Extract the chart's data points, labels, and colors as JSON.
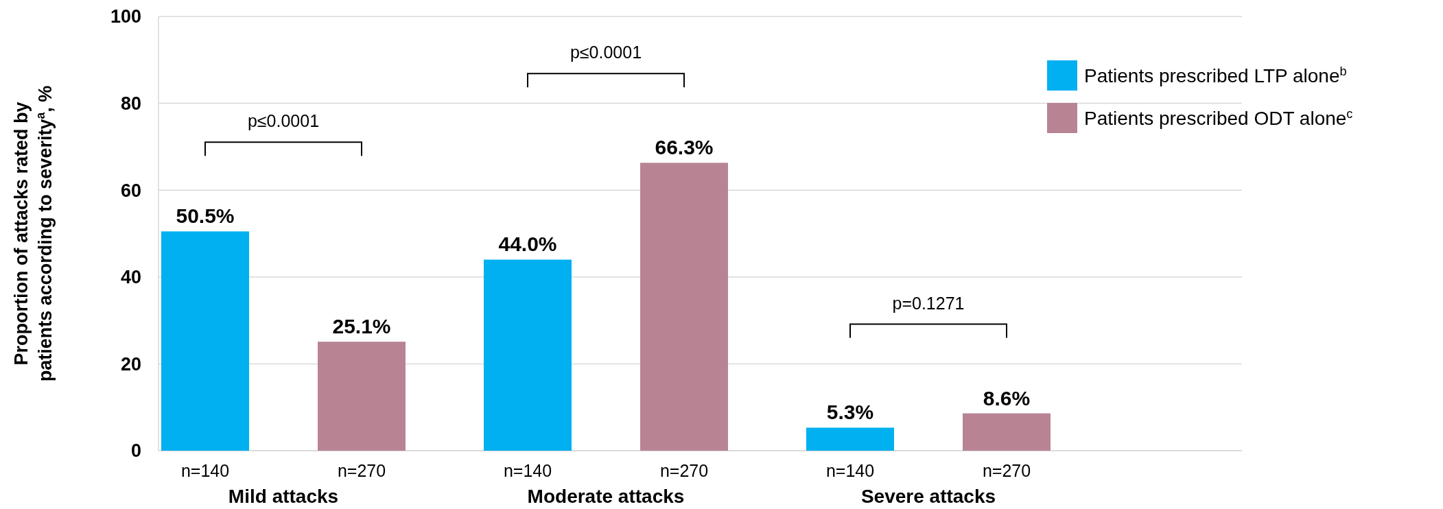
{
  "chart_data": {
    "type": "bar",
    "ylabel": "Proportion of attacks rated by patients according to severity$^{a}$, %",
    "categories": [
      "Mild attacks",
      "Moderate attacks",
      "Severe attacks"
    ],
    "series": [
      {
        "name": "Patients prescribed LTP alone$^{b}$",
        "color": "#00b0f0",
        "values": [
          50.5,
          44.0,
          5.3
        ]
      },
      {
        "name": "Patients prescribed ODT alone$^{c}$",
        "color": "#b88494",
        "values": [
          25.1,
          66.3,
          8.6
        ]
      }
    ],
    "value_labels": [
      [
        "50.5%",
        "44.0%",
        "5.3%"
      ],
      [
        "25.1%",
        "66.3%",
        "8.6%"
      ]
    ],
    "ylim": [
      0,
      100
    ],
    "yticks": [
      0,
      20,
      40,
      60,
      80,
      100
    ],
    "grid": "y",
    "legend": "top right",
    "annotations": [
      "n=140",
      "n=270",
      "n=140",
      "n=270",
      "n=140",
      "n=270",
      "p≤0.0001",
      "p≤0.0001",
      "p=0.1271"
    ]
  }
}
